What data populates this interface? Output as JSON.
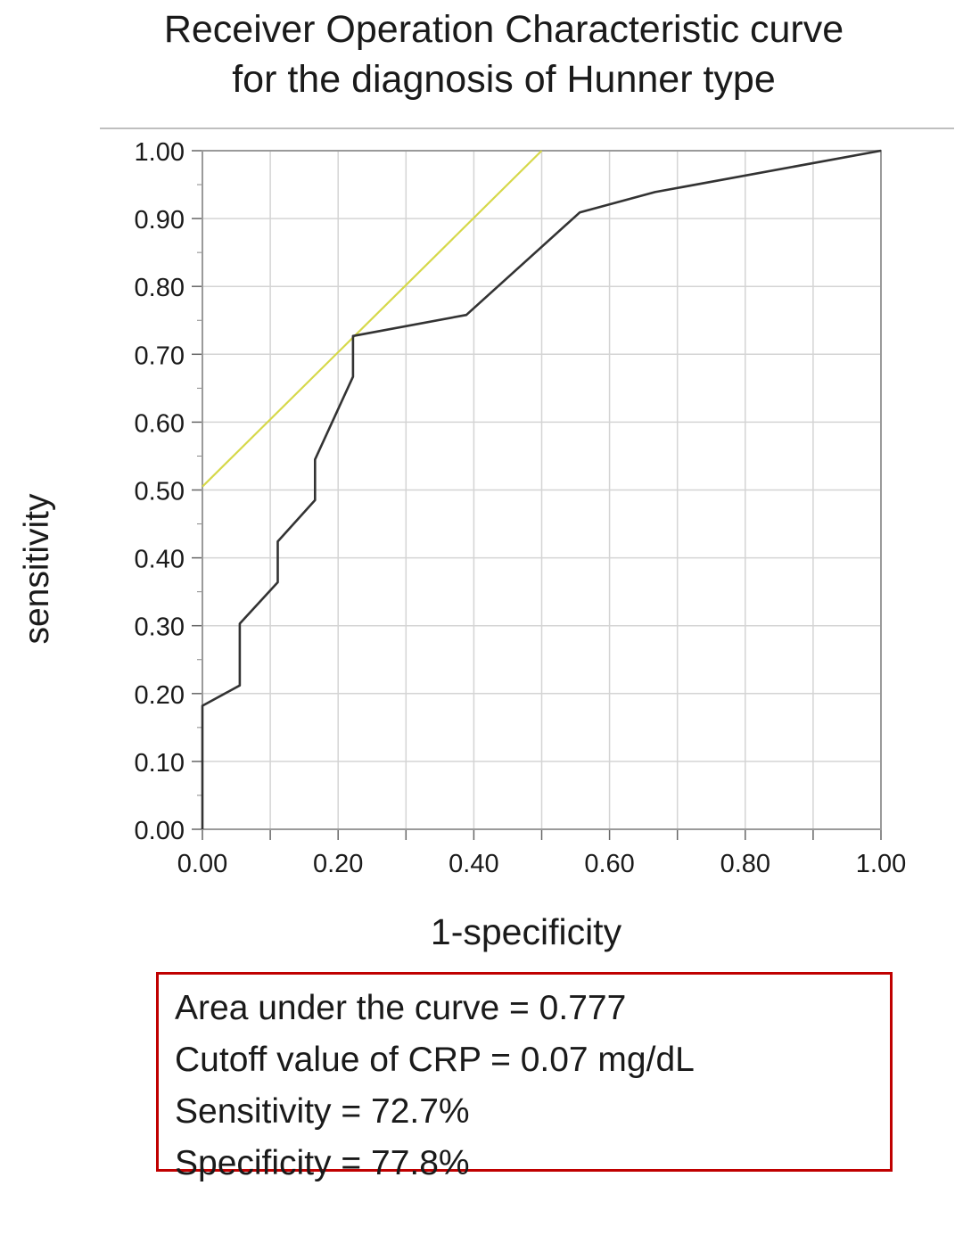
{
  "chart_data": {
    "type": "line",
    "title_lines": [
      "Receiver Operation Characteristic curve",
      "for the diagnosis of Hunner type"
    ],
    "xlabel": "1-specificity",
    "ylabel": "sensitivity",
    "xlim": [
      0,
      1
    ],
    "ylim": [
      0,
      1
    ],
    "x_ticks": [
      "0.00",
      "0.20",
      "0.40",
      "0.60",
      "0.80",
      "1.00"
    ],
    "y_ticks": [
      "0.00",
      "0.10",
      "0.20",
      "0.30",
      "0.40",
      "0.50",
      "0.60",
      "0.70",
      "0.80",
      "0.90",
      "1.00"
    ],
    "grid": true,
    "series": [
      {
        "color": "#333333",
        "x": [
          0.0,
          0.0,
          0.055,
          0.055,
          0.111,
          0.111,
          0.166,
          0.166,
          0.222,
          0.222,
          0.389,
          0.556,
          0.667,
          1.0
        ],
        "y": [
          0.0,
          0.182,
          0.212,
          0.303,
          0.364,
          0.424,
          0.485,
          0.545,
          0.667,
          0.727,
          0.758,
          0.909,
          0.939,
          1.0
        ]
      },
      {
        "color": "#d6d84a",
        "x": [
          0.0,
          0.5
        ],
        "y": [
          0.505,
          1.0
        ]
      }
    ],
    "stats_box": {
      "border_color": "#c00000",
      "lines": [
        "Area under the curve = 0.777",
        "Cutoff value of CRP = 0.07 mg/dL",
        "Sensitivity = 72.7%",
        "Specificity = 77.8%"
      ]
    }
  }
}
